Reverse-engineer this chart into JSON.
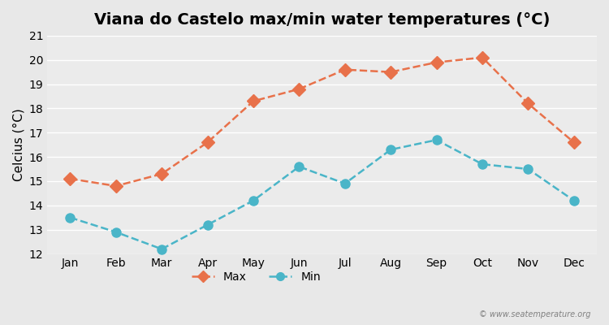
{
  "title": "Viana do Castelo max/min water temperatures (°C)",
  "ylabel": "Celcius (°C)",
  "months": [
    "Jan",
    "Feb",
    "Mar",
    "Apr",
    "May",
    "Jun",
    "Jul",
    "Aug",
    "Sep",
    "Oct",
    "Nov",
    "Dec"
  ],
  "max_values": [
    15.1,
    14.8,
    15.3,
    16.6,
    18.3,
    18.8,
    19.6,
    19.5,
    19.9,
    20.1,
    18.2,
    16.6
  ],
  "min_values": [
    13.5,
    12.9,
    12.2,
    13.2,
    14.2,
    15.6,
    14.9,
    16.3,
    16.7,
    15.7,
    15.5,
    14.2
  ],
  "max_color": "#e8714a",
  "min_color": "#4ab5c8",
  "bg_color": "#e8e8e8",
  "plot_bg_color": "#ebebeb",
  "ylim": [
    12,
    21
  ],
  "yticks": [
    12,
    13,
    14,
    15,
    16,
    17,
    18,
    19,
    20,
    21
  ],
  "legend_labels": [
    "Max",
    "Min"
  ],
  "watermark": "© www.seatemperature.org",
  "title_fontsize": 14,
  "axis_fontsize": 11,
  "tick_fontsize": 10,
  "marker_style": "D",
  "linewidth": 1.8,
  "markersize": 8
}
